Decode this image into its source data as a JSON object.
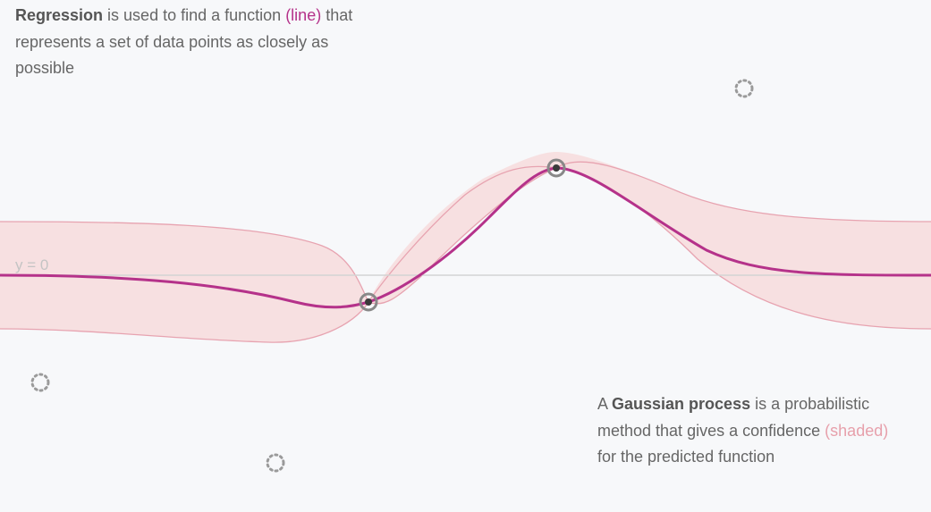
{
  "captions": {
    "top": {
      "bold": "Regression",
      "text1": " is used to find a function ",
      "highlight": "(line)",
      "text2": " that represents a set of data points as closely as possible"
    },
    "bottom": {
      "text0": "A ",
      "bold": "Gaussian process",
      "text1": " is a probabilistic method that gives a confidence ",
      "highlight": "(shaded)",
      "text2": " for the predicted function"
    }
  },
  "axis_label": "y = 0",
  "colors": {
    "mean_line": "#b5328a",
    "confidence_fill": "#f7e0e1",
    "confidence_edge": "#e7a3b0",
    "zero_line": "#d4d4d4",
    "observed_point": "#888888",
    "candidate_point": "#9a9a9a"
  },
  "observed_points": [
    {
      "name": "observed-point-1"
    },
    {
      "name": "observed-point-2"
    }
  ],
  "candidate_points": [
    {
      "name": "candidate-point-1"
    },
    {
      "name": "candidate-point-2"
    },
    {
      "name": "candidate-point-3"
    }
  ]
}
